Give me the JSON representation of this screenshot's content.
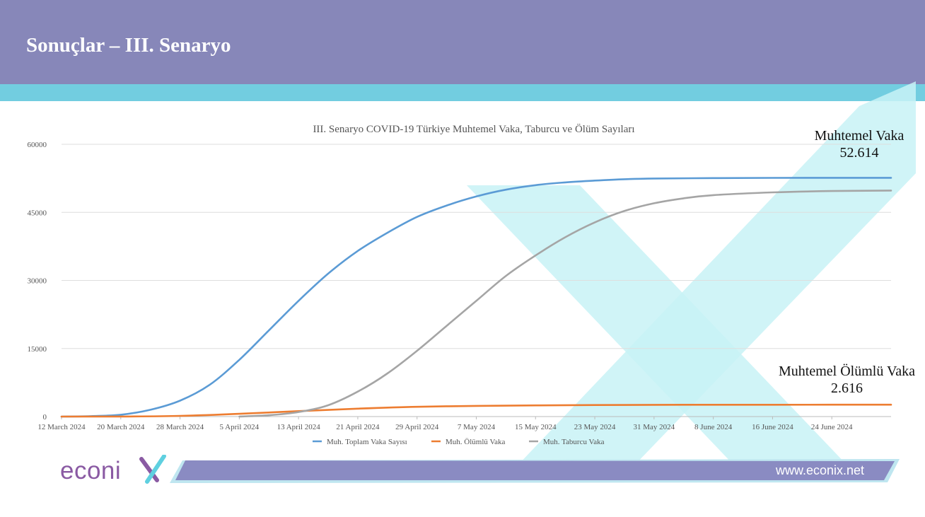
{
  "slide": {
    "title": "Sonuçlar – III. Senaryo"
  },
  "chart_data": {
    "type": "line",
    "title": "III. Senaryo COVID-19 Türkiye Muhtemel Vaka, Taburcu ve Ölüm  Sayıları",
    "xlabel": "",
    "ylabel": "",
    "ylim": [
      0,
      60000
    ],
    "y_ticks": [
      0,
      15000,
      30000,
      45000,
      60000
    ],
    "x_tick_labels": [
      "12 March 2024",
      "20 March 2024",
      "28 March 2024",
      "5 April 2024",
      "13 April 2024",
      "21 April 2024",
      "29 April 2024",
      "7 May 2024",
      "15 May 2024",
      "23 May 2024",
      "31 May 2024",
      "8 June 2024",
      "16 June 2024",
      "24 June 2024"
    ],
    "x_range": [
      "2024-03-12",
      "2024-07-02"
    ],
    "grid": true,
    "legend_position": "bottom",
    "series": [
      {
        "name": "Muh. Toplam Vaka Sayısı",
        "color": "#5b9bd5",
        "x": [
          "2024-03-12",
          "2024-03-16",
          "2024-03-20",
          "2024-03-24",
          "2024-03-28",
          "2024-04-01",
          "2024-04-05",
          "2024-04-09",
          "2024-04-13",
          "2024-04-17",
          "2024-04-21",
          "2024-04-25",
          "2024-04-29",
          "2024-05-03",
          "2024-05-07",
          "2024-05-11",
          "2024-05-15",
          "2024-05-19",
          "2024-05-23",
          "2024-05-27",
          "2024-05-31",
          "2024-06-08",
          "2024-06-16",
          "2024-06-24",
          "2024-07-02"
        ],
        "values": [
          0,
          100,
          400,
          1500,
          3500,
          7000,
          12500,
          19000,
          25500,
          31500,
          36500,
          40500,
          44000,
          46500,
          48500,
          50000,
          51000,
          51600,
          52000,
          52300,
          52450,
          52550,
          52600,
          52610,
          52614
        ]
      },
      {
        "name": "Muh. Ölümlü Vaka",
        "color": "#ed7d31",
        "x": [
          "2024-03-12",
          "2024-03-20",
          "2024-03-28",
          "2024-04-05",
          "2024-04-13",
          "2024-04-21",
          "2024-04-29",
          "2024-05-07",
          "2024-05-15",
          "2024-05-23",
          "2024-05-31",
          "2024-06-08",
          "2024-06-16",
          "2024-06-24",
          "2024-07-02"
        ],
        "values": [
          0,
          20,
          150,
          600,
          1200,
          1750,
          2150,
          2350,
          2470,
          2540,
          2580,
          2600,
          2610,
          2614,
          2616
        ]
      },
      {
        "name": "Muh. Taburcu Vaka",
        "color": "#a5a5a5",
        "x": [
          "2024-04-05",
          "2024-04-09",
          "2024-04-13",
          "2024-04-17",
          "2024-04-21",
          "2024-04-25",
          "2024-04-29",
          "2024-05-03",
          "2024-05-07",
          "2024-05-11",
          "2024-05-15",
          "2024-05-19",
          "2024-05-23",
          "2024-05-27",
          "2024-05-31",
          "2024-06-04",
          "2024-06-08",
          "2024-06-16",
          "2024-06-24",
          "2024-07-02"
        ],
        "values": [
          0,
          300,
          1000,
          2500,
          5500,
          9500,
          14500,
          20000,
          25500,
          31000,
          35500,
          39500,
          42800,
          45300,
          47000,
          48100,
          48800,
          49400,
          49700,
          49800
        ]
      }
    ],
    "annotations": [
      {
        "label": "Muhtemel Vaka",
        "value": "52.614"
      },
      {
        "label": "Muhtemel Ölümlü Vaka",
        "value": "2.616"
      }
    ]
  },
  "footer": {
    "logo_text": "econi",
    "website": "www.econix.net",
    "brand_color": "#8a5aa3",
    "accent_color": "#5fd0e0"
  }
}
